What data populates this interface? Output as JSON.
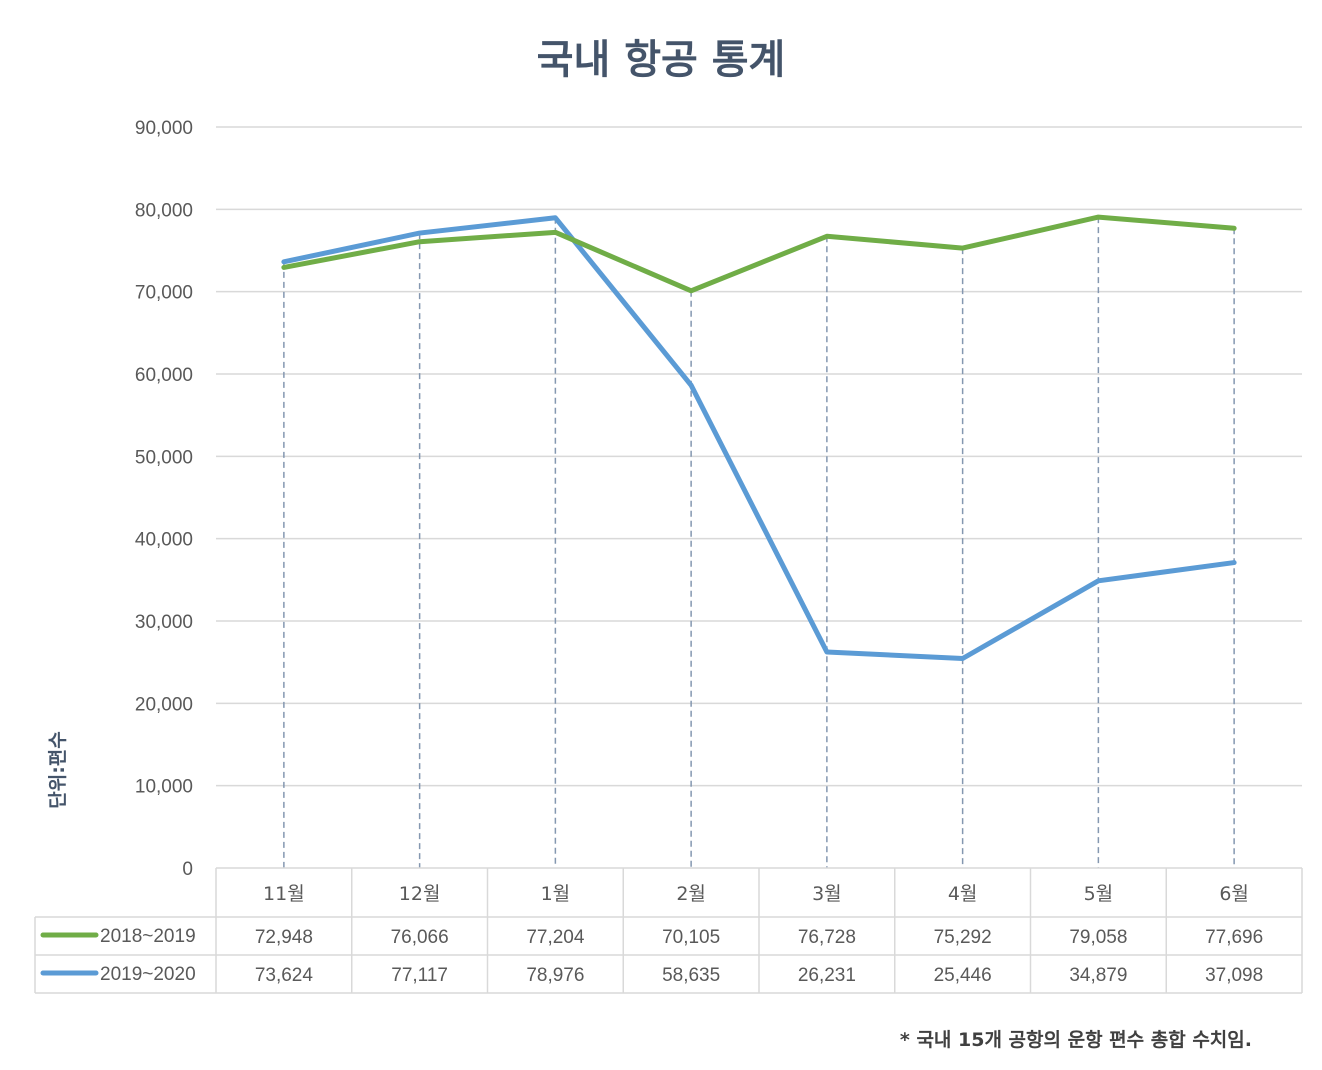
{
  "chart_data": {
    "type": "line",
    "title": "국내 항공 통계",
    "ylabel": "단위:편수",
    "xlabel": "",
    "ylim": [
      0,
      90000
    ],
    "yticks": [
      "0",
      "10,000",
      "20,000",
      "30,000",
      "40,000",
      "50,000",
      "60,000",
      "70,000",
      "80,000",
      "90,000"
    ],
    "ytick_values": [
      0,
      10000,
      20000,
      30000,
      40000,
      50000,
      60000,
      70000,
      80000,
      90000
    ],
    "categories": [
      "11월",
      "12월",
      "1월",
      "2월",
      "3월",
      "4월",
      "5월",
      "6월"
    ],
    "grid": true,
    "data_table": true,
    "series": [
      {
        "name": "2018~2019",
        "color": "#70ad47",
        "values": [
          72948,
          76066,
          77204,
          70105,
          76728,
          75292,
          79058,
          77696
        ],
        "labels": [
          "72,948",
          "76,066",
          "77,204",
          "70,105",
          "76,728",
          "75,292",
          "79,058",
          "77,696"
        ]
      },
      {
        "name": "2019~2020",
        "color": "#5b9bd5",
        "values": [
          73624,
          77117,
          78976,
          58635,
          26231,
          25446,
          34879,
          37098
        ],
        "labels": [
          "73,624",
          "77,117",
          "78,976",
          "58,635",
          "26,231",
          "25,446",
          "34,879",
          "37,098"
        ]
      }
    ],
    "footnote": "* 국내 15개 공항의 운항 편수 총합 수치임."
  },
  "colors": {
    "title": "#44546a",
    "grid": "#d9d9d9",
    "dropline": "#8497b0",
    "axis_text": "#595959"
  }
}
